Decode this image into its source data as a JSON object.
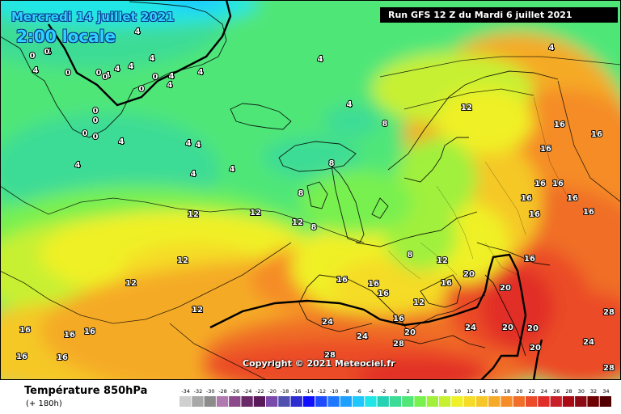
{
  "header": {
    "valid_date": "Mercredi 14 juillet 2021",
    "valid_time": "2:00 locale",
    "run_info": "Run GFS 12 Z du Mardi 6 juillet 2021"
  },
  "map": {
    "copyright": "Copyright © 2021 Meteociel.fr",
    "isotherm_labels": [
      "4",
      "4",
      "4",
      "4",
      "4",
      "4",
      "4",
      "4",
      "4",
      "4",
      "4",
      "4",
      "4",
      "4",
      "4",
      "4",
      "4",
      "4",
      "4",
      "0",
      "0",
      "0",
      "0",
      "0",
      "0",
      "0",
      "0",
      "0",
      "0",
      "0",
      "8",
      "8",
      "8",
      "8",
      "8",
      "12",
      "12",
      "12",
      "12",
      "12",
      "12",
      "12",
      "12",
      "12",
      "16",
      "16",
      "16",
      "16",
      "16",
      "16",
      "16",
      "16",
      "16",
      "16",
      "16",
      "16",
      "16",
      "16",
      "16",
      "16",
      "16",
      "16",
      "16",
      "16",
      "20",
      "20",
      "20",
      "20",
      "20",
      "20",
      "24",
      "24",
      "24",
      "24",
      "28",
      "28",
      "28",
      "28"
    ]
  },
  "footer": {
    "parameter": "Température 850hPa",
    "forecast_step": "(+ 180h)"
  },
  "legend": {
    "labels": [
      "-34",
      "-32",
      "-30",
      "-28",
      "-26",
      "-24",
      "-22",
      "-20",
      "-18",
      "-16",
      "-14",
      "-12",
      "-10",
      "-8",
      "-6",
      "-4",
      "-2",
      "0",
      "2",
      "4",
      "6",
      "8",
      "10",
      "12",
      "14",
      "16",
      "18",
      "20",
      "22",
      "24",
      "26",
      "28",
      "30",
      "32",
      "34"
    ],
    "colors": [
      "#cfcfcf",
      "#a8a8a8",
      "#8c8c8c",
      "#b07ab0",
      "#8c4a8c",
      "#6a2a6a",
      "#5a1a5a",
      "#7a4aaa",
      "#5050b0",
      "#2d2dd0",
      "#1010ff",
      "#1e4bff",
      "#1e78ff",
      "#1ea0ff",
      "#1ec8ff",
      "#20e6e6",
      "#26d2b4",
      "#3cdc96",
      "#50e678",
      "#78f050",
      "#a0f03c",
      "#c8f032",
      "#f0f028",
      "#f5dc28",
      "#f5c828",
      "#f5aa28",
      "#f58c28",
      "#f06e28",
      "#eb4b28",
      "#e12d28",
      "#c81e28",
      "#aa0a14",
      "#8c0a14",
      "#6e0000",
      "#500000"
    ]
  }
}
